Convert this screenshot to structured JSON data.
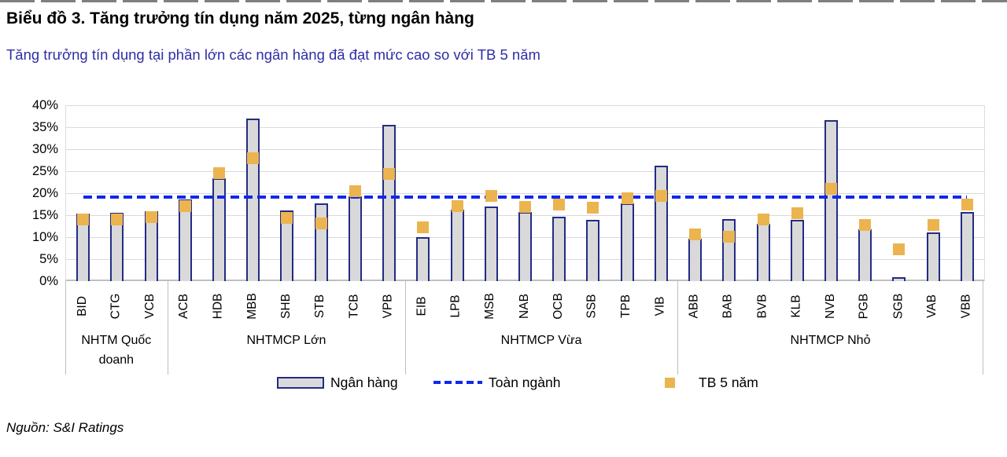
{
  "header": {
    "title": "Biểu đồ 3. Tăng trưởng tín dụng năm 2025, từng ngân hàng",
    "subtitle": "Tăng trưởng tín dụng tại phần lớn các ngân hàng đã đạt mức cao so với TB 5 năm"
  },
  "chart_data": {
    "type": "bar",
    "title": "Tăng trưởng tín dụng năm 2025, từng ngân hàng",
    "ylim": [
      0,
      40
    ],
    "ytick_step": 5,
    "y_ticks": [
      "0%",
      "5%",
      "10%",
      "15%",
      "20%",
      "25%",
      "30%",
      "35%",
      "40%"
    ],
    "grid": "horizontal",
    "legend_position": "bottom",
    "industry_line_value": 19.1,
    "series_legend": {
      "bar": "Ngân hàng",
      "line": "Toàn ngành",
      "point": "TB 5 năm"
    },
    "groups": [
      {
        "label": "NHTM Quốc doanh",
        "banks": [
          {
            "code": "BID",
            "growth_2025": 15.4,
            "avg_5y": 14.0
          },
          {
            "code": "CTG",
            "growth_2025": 15.6,
            "avg_5y": 14.1
          },
          {
            "code": "VCB",
            "growth_2025": 15.9,
            "avg_5y": 14.6
          }
        ]
      },
      {
        "label": "NHTMCP Lớn",
        "banks": [
          {
            "code": "ACB",
            "growth_2025": 18.6,
            "avg_5y": 17.0
          },
          {
            "code": "HDB",
            "growth_2025": 23.4,
            "avg_5y": 24.5
          },
          {
            "code": "MBB",
            "growth_2025": 36.9,
            "avg_5y": 27.9
          },
          {
            "code": "SHB",
            "growth_2025": 16.1,
            "avg_5y": 14.3
          },
          {
            "code": "STB",
            "growth_2025": 17.7,
            "avg_5y": 13.2
          },
          {
            "code": "TCB",
            "growth_2025": 19.2,
            "avg_5y": 20.5
          },
          {
            "code": "VPB",
            "growth_2025": 35.5,
            "avg_5y": 24.3
          }
        ]
      },
      {
        "label": "NHTMCP Vừa",
        "banks": [
          {
            "code": "EIB",
            "growth_2025": 10.0,
            "avg_5y": 12.3
          },
          {
            "code": "LPB",
            "growth_2025": 16.2,
            "avg_5y": 17.0
          },
          {
            "code": "MSB",
            "growth_2025": 16.9,
            "avg_5y": 19.4
          },
          {
            "code": "NAB",
            "growth_2025": 15.7,
            "avg_5y": 16.9
          },
          {
            "code": "OCB",
            "growth_2025": 14.7,
            "avg_5y": 17.5
          },
          {
            "code": "SSB",
            "growth_2025": 14.0,
            "avg_5y": 16.7
          },
          {
            "code": "TPB",
            "growth_2025": 17.6,
            "avg_5y": 18.8
          },
          {
            "code": "VIB",
            "growth_2025": 26.3,
            "avg_5y": 19.3
          }
        ]
      },
      {
        "label": "NHTMCP Nhỏ",
        "banks": [
          {
            "code": "ABB",
            "growth_2025": 9.6,
            "avg_5y": 10.7
          },
          {
            "code": "BAB",
            "growth_2025": 14.1,
            "avg_5y": 10.1
          },
          {
            "code": "BVB",
            "growth_2025": 13.0,
            "avg_5y": 14.1
          },
          {
            "code": "KLB",
            "growth_2025": 14.0,
            "avg_5y": 15.5
          },
          {
            "code": "NVB",
            "growth_2025": 36.6,
            "avg_5y": 21.0
          },
          {
            "code": "PGB",
            "growth_2025": 11.7,
            "avg_5y": 12.8
          },
          {
            "code": "SGB",
            "growth_2025": 0.9,
            "avg_5y": 7.3
          },
          {
            "code": "VAB",
            "growth_2025": 11.1,
            "avg_5y": 12.8
          },
          {
            "code": "VBB",
            "growth_2025": 15.7,
            "avg_5y": 17.5
          }
        ]
      }
    ]
  },
  "legend": {
    "bar": "Ngân hàng",
    "line": "Toàn ngành",
    "point": "TB 5 năm"
  },
  "source": "Nguồn: S&I Ratings",
  "colors": {
    "bar_fill": "#d9d9d9",
    "bar_border": "#232c85",
    "avg_point": "#ebb44f",
    "industry_line": "#1027ee",
    "subtitle_text": "#2e2ea6",
    "gridline": "#d9d9d9",
    "axis_line": "#bfbfbf"
  }
}
